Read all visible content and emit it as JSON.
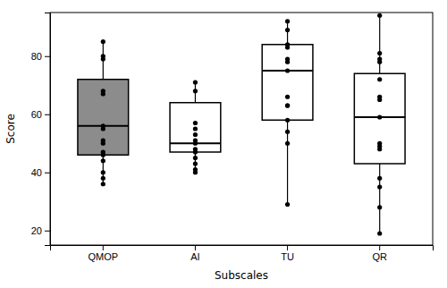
{
  "chart_data": {
    "type": "box",
    "xlabel": "Subscales",
    "ylabel": "Score",
    "categories": [
      "QMOP",
      "AI",
      "TU",
      "QR"
    ],
    "median": [
      56,
      50,
      75,
      59
    ],
    "q1": [
      46,
      47,
      58,
      43
    ],
    "q3": [
      72,
      64,
      84,
      74
    ],
    "whisker_low": [
      36,
      40,
      29,
      19
    ],
    "whisker_high": [
      85,
      71,
      92,
      94
    ],
    "points": [
      [
        85,
        80,
        79,
        68,
        67,
        56,
        55,
        51,
        50,
        47,
        46,
        44,
        40,
        38,
        36
      ],
      [
        71,
        68,
        57,
        55,
        53,
        51,
        50,
        48,
        47,
        45,
        43,
        41,
        40
      ],
      [
        92,
        89,
        84,
        83,
        79,
        78,
        75,
        66,
        63,
        63,
        58,
        54,
        50,
        29
      ],
      [
        94,
        81,
        79,
        78,
        72,
        66,
        65,
        59,
        50,
        49,
        48,
        38,
        35,
        28,
        19
      ]
    ],
    "colors": [
      "#8c8c8c",
      "#ffffff",
      "#ffffff",
      "#ffffff"
    ],
    "ylim": [
      15,
      95
    ],
    "yticks": [
      20,
      40,
      60,
      80
    ],
    "grid": false
  }
}
